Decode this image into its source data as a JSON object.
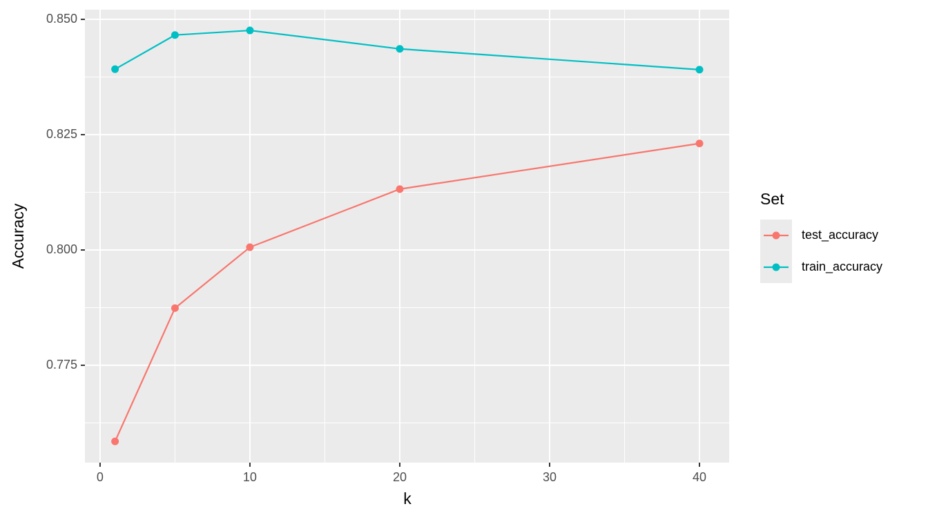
{
  "chart_data": {
    "type": "line",
    "x_label": "k",
    "y_label": "Accuracy",
    "x": [
      1,
      5,
      10,
      20,
      40
    ],
    "series": [
      {
        "name": "test_accuracy",
        "color": "#f8766d",
        "values": [
          0.7585,
          0.7874,
          0.8006,
          0.8132,
          0.8231
        ]
      },
      {
        "name": "train_accuracy",
        "color": "#00bfc4",
        "values": [
          0.8392,
          0.8466,
          0.8476,
          0.8436,
          0.8391
        ]
      }
    ],
    "xlim": [
      -1.01,
      41.98
    ],
    "xticks": [
      0,
      10,
      20,
      30,
      40
    ],
    "ylim": [
      0.7539,
      0.8521
    ],
    "yticks": [
      {
        "value": 0.775,
        "label": "0.775"
      },
      {
        "value": 0.8,
        "label": "0.800"
      },
      {
        "value": 0.825,
        "label": "0.825"
      },
      {
        "value": 0.85,
        "label": "0.850"
      }
    ],
    "grid": true,
    "legend_title": "Set",
    "legend_position": "right"
  }
}
